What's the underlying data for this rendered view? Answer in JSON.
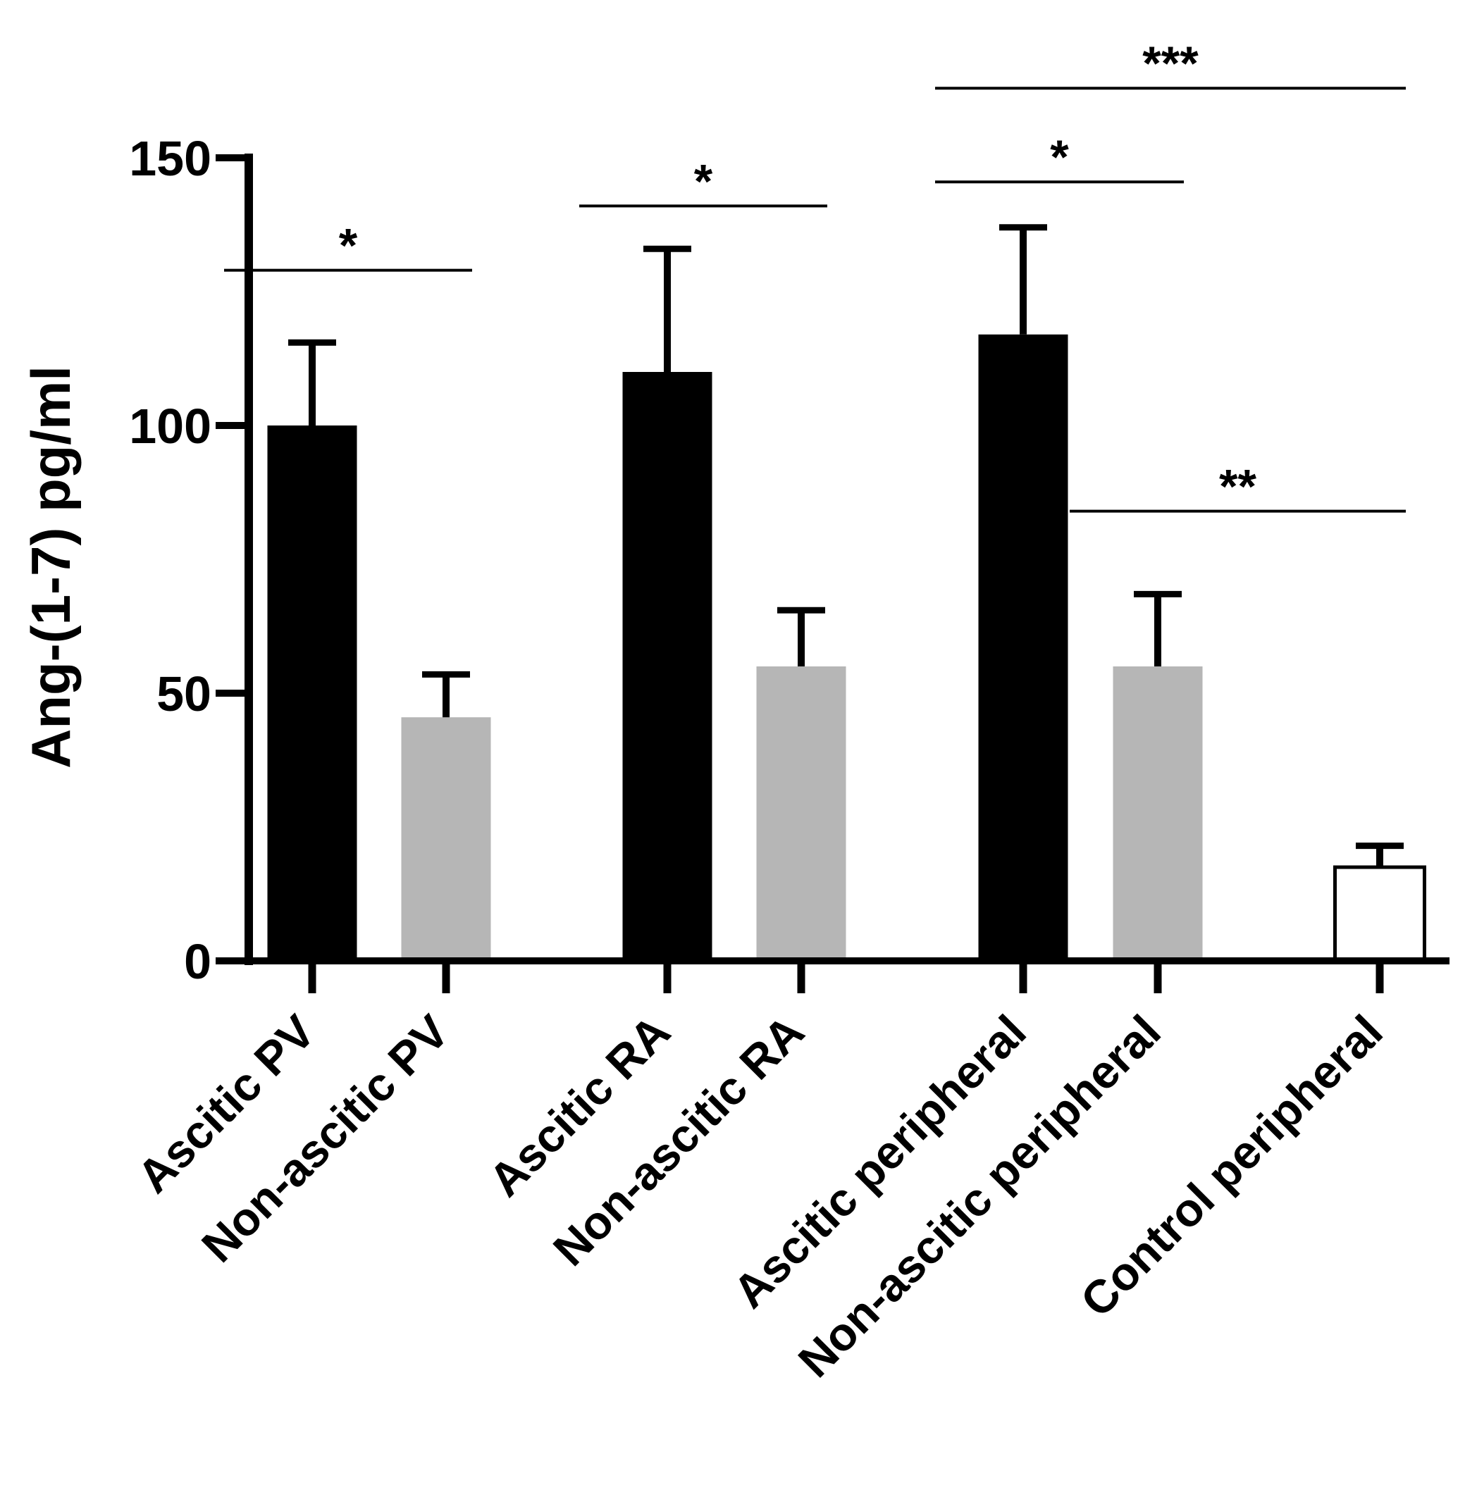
{
  "chart_data": {
    "type": "bar",
    "title": "",
    "xlabel": "",
    "ylabel": "Ang-(1-7) pg/ml",
    "ylim": [
      0,
      150
    ],
    "yticks": [
      0,
      50,
      100,
      150
    ],
    "ytick_labels": [
      "0",
      "50",
      "100",
      "150"
    ],
    "grid": false,
    "legend": "none",
    "categories": [
      "Ascitic PV",
      "Non-ascitic PV",
      "Ascitic RA",
      "Non-ascitic RA",
      "Ascitic peripheral",
      "Non-ascitic peripheral",
      "Control peripheral"
    ],
    "values": [
      100,
      45.5,
      110,
      55,
      117,
      55,
      17.5
    ],
    "error_upper": [
      115.5,
      53.5,
      133,
      65.5,
      137,
      68.5,
      21.5
    ],
    "bar_fill": [
      "#000000",
      "#b6b6b6",
      "#000000",
      "#b6b6b6",
      "#000000",
      "#b6b6b6",
      "#ffffff"
    ],
    "significance": [
      {
        "from": 0,
        "to": 1,
        "y": 129,
        "label": "*"
      },
      {
        "from": 2,
        "to": 3,
        "y": 141,
        "label": "*"
      },
      {
        "from": 4,
        "to": 5,
        "y": 145.5,
        "label": "*"
      },
      {
        "from": 4,
        "to": 6,
        "y": 163,
        "label": "***"
      },
      {
        "from": 5,
        "to": 6,
        "y": 84,
        "label": "**"
      }
    ]
  }
}
